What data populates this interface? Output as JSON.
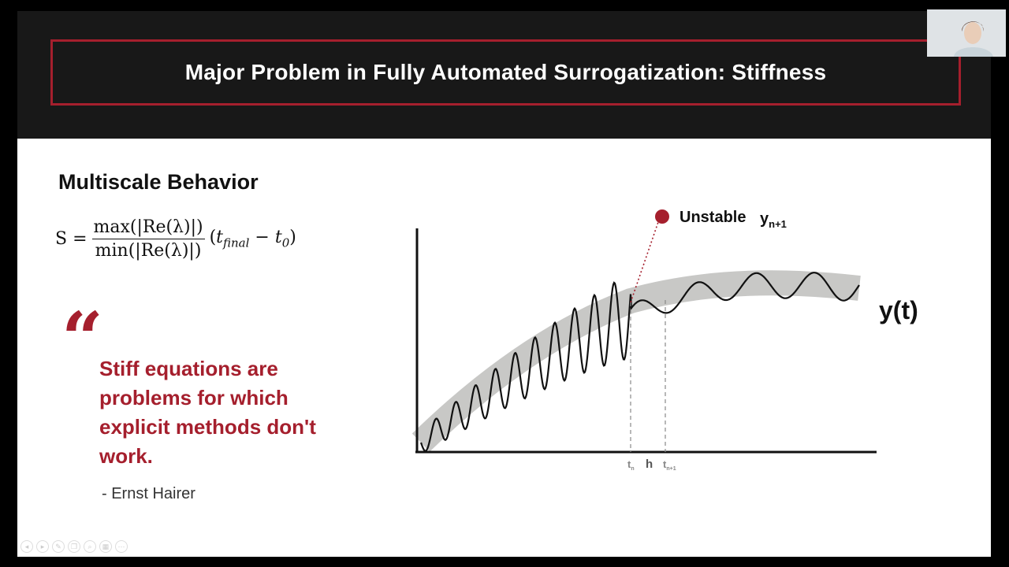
{
  "slide": {
    "title": "Major Problem in Fully Automated Surrogatization: Stiffness",
    "section_heading": "Multiscale Behavior",
    "formula": {
      "lhs": "S =",
      "numerator": "max(|Re(λ)|)",
      "denominator": "min(|Re(λ)|)",
      "t_final_base": "t",
      "t_final_sub": "final",
      "minus": "−",
      "t0_base": "t",
      "t0_sub": "0"
    },
    "quote": {
      "mark": "“",
      "text": "Stiff equations are problems for which explicit methods don't work.",
      "author": "- Ernst Hairer"
    },
    "diagram": {
      "unstable_label": "Unstable",
      "y_label": "y",
      "y_sub": "n+1",
      "curve_label": "y(t)",
      "tick_tn": "t",
      "tick_tn_sub": "n",
      "tick_h": "h",
      "tick_tn1": "t",
      "tick_tn1_sub": "n+1"
    }
  },
  "colors": {
    "accent": "#a51f2d",
    "header_bg": "#181818",
    "band": "#c8c8c6"
  },
  "nav_controls": [
    "prev-icon",
    "next-icon",
    "pen-icon",
    "copy-icon",
    "zoom-icon",
    "slides-icon",
    "more-icon"
  ]
}
